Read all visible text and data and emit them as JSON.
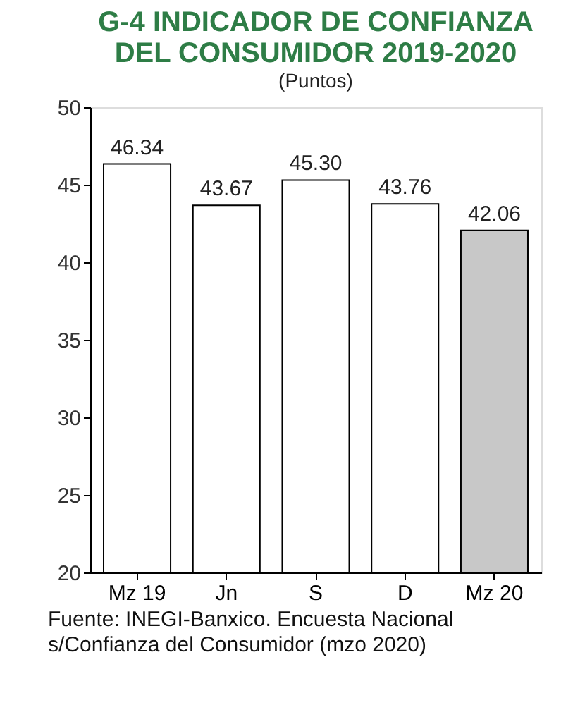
{
  "chart_data": {
    "type": "bar",
    "title": "G-4 INDICADOR DE CONFIANZA DEL CONSUMIDOR 2019-2020",
    "subtitle": "(Puntos)",
    "categories": [
      "Mz 19",
      "Jn",
      "S",
      "D",
      "Mz 20"
    ],
    "values": [
      46.34,
      43.67,
      45.3,
      43.76,
      42.06
    ],
    "value_labels": [
      "46.34",
      "43.67",
      "45.30",
      "43.76",
      "42.06"
    ],
    "colors": [
      "#ffffff",
      "#ffffff",
      "#ffffff",
      "#ffffff",
      "#c8c8c8"
    ],
    "ylim": [
      20,
      50
    ],
    "yticks": [
      20,
      25,
      30,
      35,
      40,
      45,
      50
    ],
    "grid": false,
    "annotations": [
      "Fuente: INEGI-Banxico. Encuesta Nacional s/Confianza del Consumidor (mzo 2020)"
    ]
  }
}
